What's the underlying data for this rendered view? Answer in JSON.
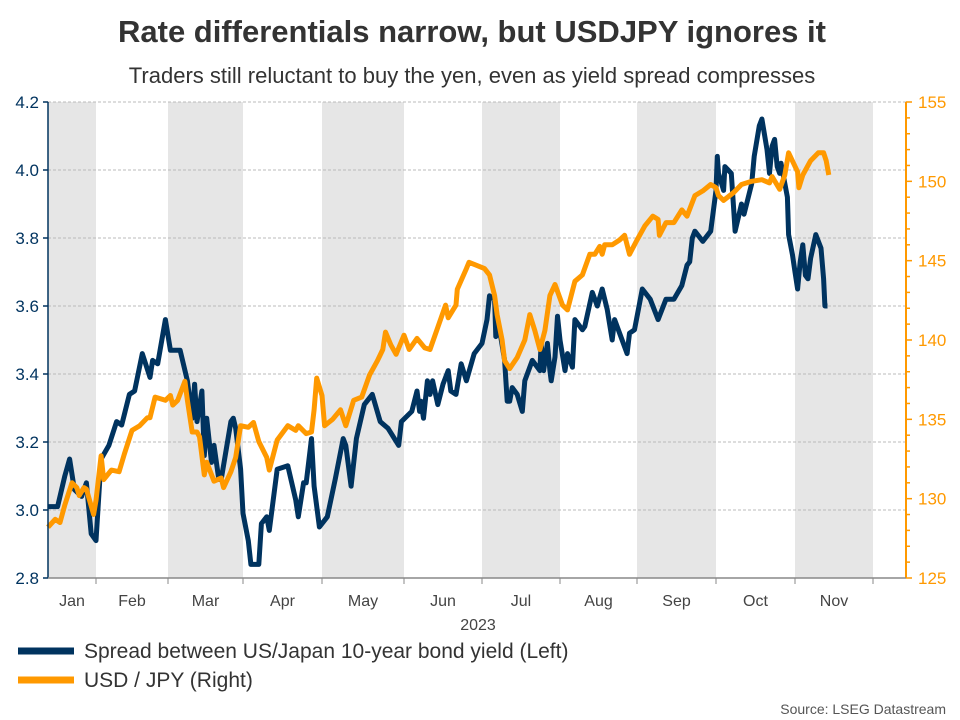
{
  "chart_data": {
    "type": "line",
    "title": "Rate differentials narrow, but USDJPY ignores it",
    "subtitle": "Traders still reluctant to buy the yen, even as yield spread compresses",
    "xlabel": "2023",
    "x_unit": "day of year 2023",
    "month_labels": [
      "Jan",
      "Feb",
      "Mar",
      "Apr",
      "May",
      "Jun",
      "Jul",
      "Aug",
      "Sep",
      "Oct",
      "Nov"
    ],
    "left_axis": {
      "ylim": [
        2.8,
        4.2
      ],
      "ticks": [
        "2.8",
        "3.0",
        "3.2",
        "3.4",
        "3.6",
        "3.8",
        "4.0",
        "4.2"
      ]
    },
    "right_axis": {
      "ylim": [
        125,
        155
      ],
      "ticks": [
        "125",
        "130",
        "135",
        "140",
        "145",
        "150",
        "155"
      ]
    },
    "grid": true,
    "legend_position": "bottom-left",
    "source": "Source: LSEG Datastream",
    "series": [
      {
        "name": "Spread between US/Japan 10-year bond yield (Left)",
        "axis": "left",
        "color": "#00335F",
        "points": [
          [
            12,
            3.01
          ],
          [
            16,
            3.01
          ],
          [
            19,
            3.1
          ],
          [
            21,
            3.15
          ],
          [
            23,
            3.06
          ],
          [
            26,
            3.04
          ],
          [
            28,
            3.08
          ],
          [
            30,
            2.93
          ],
          [
            32,
            2.91
          ],
          [
            34,
            3.15
          ],
          [
            37,
            3.19
          ],
          [
            40,
            3.26
          ],
          [
            42,
            3.25
          ],
          [
            45,
            3.34
          ],
          [
            47,
            3.35
          ],
          [
            50,
            3.46
          ],
          [
            53,
            3.39
          ],
          [
            54,
            3.44
          ],
          [
            56,
            3.43
          ],
          [
            59,
            3.56
          ],
          [
            61,
            3.47
          ],
          [
            65,
            3.47
          ],
          [
            68,
            3.38
          ],
          [
            70,
            3.27
          ],
          [
            71,
            3.37
          ],
          [
            72,
            3.26
          ],
          [
            74,
            3.35
          ],
          [
            75,
            3.16
          ],
          [
            76,
            3.27
          ],
          [
            78,
            3.14
          ],
          [
            79,
            3.19
          ],
          [
            81,
            3.09
          ],
          [
            82,
            3.09
          ],
          [
            86,
            3.26
          ],
          [
            87,
            3.27
          ],
          [
            88,
            3.24
          ],
          [
            90,
            3.12
          ],
          [
            91,
            2.99
          ],
          [
            93,
            2.91
          ],
          [
            94,
            2.84
          ],
          [
            97,
            2.84
          ],
          [
            98,
            2.96
          ],
          [
            100,
            2.98
          ],
          [
            101,
            2.94
          ],
          [
            104,
            3.12
          ],
          [
            108,
            3.13
          ],
          [
            111,
            3.03
          ],
          [
            112,
            2.98
          ],
          [
            114,
            3.08
          ],
          [
            115,
            3.08
          ],
          [
            117,
            3.21
          ],
          [
            118,
            3.07
          ],
          [
            120,
            2.95
          ],
          [
            123,
            2.98
          ],
          [
            126,
            3.09
          ],
          [
            129,
            3.21
          ],
          [
            130,
            3.19
          ],
          [
            132,
            3.07
          ],
          [
            134,
            3.21
          ],
          [
            137,
            3.31
          ],
          [
            140,
            3.34
          ],
          [
            143,
            3.26
          ],
          [
            146,
            3.24
          ],
          [
            150,
            3.19
          ],
          [
            151,
            3.26
          ],
          [
            155,
            3.29
          ],
          [
            157,
            3.35
          ],
          [
            158,
            3.29
          ],
          [
            158.5,
            3.32
          ],
          [
            159.5,
            3.27
          ],
          [
            161,
            3.38
          ],
          [
            162,
            3.34
          ],
          [
            163,
            3.38
          ],
          [
            165,
            3.31
          ],
          [
            167,
            3.37
          ],
          [
            169,
            3.41
          ],
          [
            170,
            3.35
          ],
          [
            172,
            3.34
          ],
          [
            174,
            3.43
          ],
          [
            176,
            3.38
          ],
          [
            179,
            3.46
          ],
          [
            182,
            3.49
          ],
          [
            184,
            3.56
          ],
          [
            185,
            3.63
          ],
          [
            187,
            3.62
          ],
          [
            187.5,
            3.51
          ],
          [
            189,
            3.53
          ],
          [
            191,
            3.44
          ],
          [
            192,
            3.32
          ],
          [
            193,
            3.32
          ],
          [
            194,
            3.36
          ],
          [
            196,
            3.34
          ],
          [
            198,
            3.29
          ],
          [
            199,
            3.38
          ],
          [
            202,
            3.44
          ],
          [
            205,
            3.41
          ],
          [
            205.5,
            3.49
          ],
          [
            206.5,
            3.41
          ],
          [
            208,
            3.49
          ],
          [
            209,
            3.41
          ],
          [
            209.5,
            3.38
          ],
          [
            211,
            3.45
          ],
          [
            212,
            3.57
          ],
          [
            213,
            3.5
          ],
          [
            215,
            3.41
          ],
          [
            216,
            3.46
          ],
          [
            218,
            3.42
          ],
          [
            219,
            3.56
          ],
          [
            222,
            3.53
          ],
          [
            223,
            3.54
          ],
          [
            226,
            3.64
          ],
          [
            228,
            3.6
          ],
          [
            230,
            3.65
          ],
          [
            232,
            3.59
          ],
          [
            234,
            3.5
          ],
          [
            235,
            3.56
          ],
          [
            238,
            3.5
          ],
          [
            240,
            3.46
          ],
          [
            241,
            3.52
          ],
          [
            243,
            3.53
          ],
          [
            246,
            3.65
          ],
          [
            249,
            3.62
          ],
          [
            252,
            3.56
          ],
          [
            255,
            3.62
          ],
          [
            258,
            3.62
          ],
          [
            261,
            3.66
          ],
          [
            263,
            3.72
          ],
          [
            264,
            3.73
          ],
          [
            265,
            3.8
          ],
          [
            266,
            3.82
          ],
          [
            269,
            3.79
          ],
          [
            272,
            3.82
          ],
          [
            274,
            3.94
          ],
          [
            274.5,
            4.04
          ],
          [
            275,
            3.99
          ],
          [
            277,
            3.94
          ],
          [
            277.5,
            4.01
          ],
          [
            280,
            3.99
          ],
          [
            281,
            3.88
          ],
          [
            281.5,
            3.82
          ],
          [
            284,
            3.9
          ],
          [
            285,
            3.87
          ],
          [
            286,
            3.9
          ],
          [
            288,
            3.96
          ],
          [
            289,
            4.04
          ],
          [
            291,
            4.13
          ],
          [
            292,
            4.15
          ],
          [
            294,
            4.06
          ],
          [
            295,
            3.99
          ],
          [
            296,
            4.07
          ],
          [
            297,
            4.09
          ],
          [
            298,
            4.01
          ],
          [
            299,
            3.99
          ],
          [
            299.5,
            4.02
          ],
          [
            302,
            3.92
          ],
          [
            302.5,
            3.81
          ],
          [
            304,
            3.75
          ],
          [
            305,
            3.7
          ],
          [
            306,
            3.65
          ],
          [
            307,
            3.73
          ],
          [
            308,
            3.78
          ],
          [
            309,
            3.69
          ],
          [
            310,
            3.68
          ],
          [
            311,
            3.74
          ],
          [
            313,
            3.81
          ],
          [
            315,
            3.77
          ],
          [
            316,
            3.68
          ],
          [
            316.5,
            3.6
          ],
          [
            317.5,
            3.6
          ]
        ]
      },
      {
        "name": "USD / JPY (Right)",
        "axis": "right",
        "color": "#FF9900",
        "points": [
          [
            12,
            128.2
          ],
          [
            15,
            128.7
          ],
          [
            17,
            128.5
          ],
          [
            19,
            129.6
          ],
          [
            22,
            131.0
          ],
          [
            24,
            130.7
          ],
          [
            25,
            130.2
          ],
          [
            27,
            130.7
          ],
          [
            28,
            130.6
          ],
          [
            31,
            129.0
          ],
          [
            32,
            129.9
          ],
          [
            34,
            132.7
          ],
          [
            35,
            131.2
          ],
          [
            38,
            131.8
          ],
          [
            41,
            131.7
          ],
          [
            43,
            132.8
          ],
          [
            46,
            134.3
          ],
          [
            49,
            134.6
          ],
          [
            52,
            135.1
          ],
          [
            53,
            135.1
          ],
          [
            55,
            136.4
          ],
          [
            59,
            136.2
          ],
          [
            61,
            136.5
          ],
          [
            62,
            135.9
          ],
          [
            64,
            136.2
          ],
          [
            67,
            137.4
          ],
          [
            68,
            136.2
          ],
          [
            70,
            134.2
          ],
          [
            72,
            134.2
          ],
          [
            73,
            133.9
          ],
          [
            75,
            131.5
          ],
          [
            76,
            132.3
          ],
          [
            79,
            131.1
          ],
          [
            82,
            131.3
          ],
          [
            83,
            130.7
          ],
          [
            86,
            131.7
          ],
          [
            88,
            132.6
          ],
          [
            90,
            134.6
          ],
          [
            93,
            134.5
          ],
          [
            95,
            134.8
          ],
          [
            97,
            133.6
          ],
          [
            100,
            132.6
          ],
          [
            101,
            131.8
          ],
          [
            104,
            133.7
          ],
          [
            108,
            134.6
          ],
          [
            111,
            134.3
          ],
          [
            112,
            134.6
          ],
          [
            115,
            134.1
          ],
          [
            117,
            134.2
          ],
          [
            118,
            135.6
          ],
          [
            119,
            137.6
          ],
          [
            121,
            136.5
          ],
          [
            122,
            134.6
          ],
          [
            125,
            135.0
          ],
          [
            128,
            135.6
          ],
          [
            130,
            134.6
          ],
          [
            133,
            136.2
          ],
          [
            136,
            136.4
          ],
          [
            139,
            137.8
          ],
          [
            142,
            138.7
          ],
          [
            144,
            139.4
          ],
          [
            145,
            140.5
          ],
          [
            147,
            139.7
          ],
          [
            149,
            139.1
          ],
          [
            152,
            140.3
          ],
          [
            154,
            139.4
          ],
          [
            157,
            140.1
          ],
          [
            160,
            139.5
          ],
          [
            162,
            139.4
          ],
          [
            165,
            140.8
          ],
          [
            168,
            142.2
          ],
          [
            169,
            141.4
          ],
          [
            172,
            142.2
          ],
          [
            172.5,
            143.2
          ],
          [
            176,
            144.5
          ],
          [
            177,
            144.9
          ],
          [
            180,
            144.7
          ],
          [
            183,
            144.5
          ],
          [
            185,
            144.1
          ],
          [
            187,
            142.8
          ],
          [
            188,
            141.6
          ],
          [
            190,
            140.0
          ],
          [
            191,
            138.7
          ],
          [
            193,
            138.2
          ],
          [
            196,
            138.9
          ],
          [
            199,
            140.0
          ],
          [
            201,
            141.6
          ],
          [
            203,
            140.6
          ],
          [
            205,
            139.4
          ],
          [
            207,
            140.6
          ],
          [
            209,
            142.8
          ],
          [
            211,
            143.5
          ],
          [
            214,
            142.2
          ],
          [
            216,
            141.9
          ],
          [
            219,
            143.7
          ],
          [
            222,
            144.1
          ],
          [
            225,
            145.4
          ],
          [
            227,
            145.4
          ],
          [
            229,
            145.9
          ],
          [
            230,
            145.4
          ],
          [
            231,
            146.0
          ],
          [
            234,
            146.0
          ],
          [
            237,
            146.3
          ],
          [
            239,
            146.6
          ],
          [
            241,
            145.4
          ],
          [
            244,
            146.3
          ],
          [
            247,
            147.2
          ],
          [
            250,
            147.8
          ],
          [
            252,
            147.6
          ],
          [
            252.5,
            146.6
          ],
          [
            255,
            147.4
          ],
          [
            258,
            147.4
          ],
          [
            261,
            148.2
          ],
          [
            263,
            147.8
          ],
          [
            266,
            149.1
          ],
          [
            269,
            149.4
          ],
          [
            272,
            149.8
          ],
          [
            274,
            149.6
          ],
          [
            275,
            149.1
          ],
          [
            277,
            148.8
          ],
          [
            281,
            149.3
          ],
          [
            284,
            149.8
          ],
          [
            288,
            150.0
          ],
          [
            292,
            150.1
          ],
          [
            295,
            149.9
          ],
          [
            296,
            150.3
          ],
          [
            299,
            149.5
          ],
          [
            301,
            150.4
          ],
          [
            302.5,
            151.8
          ],
          [
            306,
            150.6
          ],
          [
            306.5,
            149.6
          ],
          [
            308,
            150.4
          ],
          [
            311,
            151.3
          ],
          [
            314,
            151.8
          ],
          [
            316,
            151.8
          ],
          [
            317,
            151.3
          ],
          [
            318,
            150.4
          ]
        ]
      }
    ]
  }
}
